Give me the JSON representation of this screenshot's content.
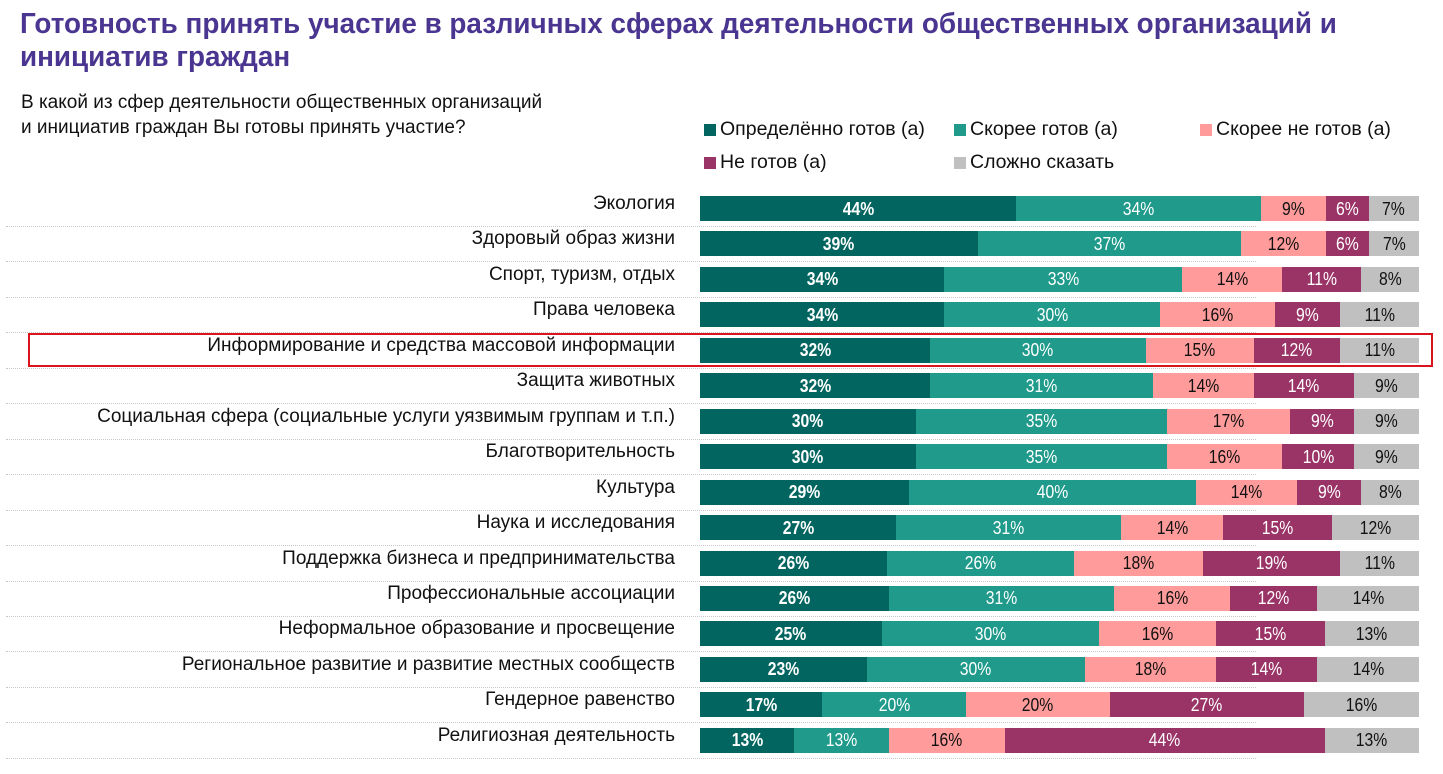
{
  "title": "Готовность принять участие в различных сферах деятельности общественных организаций и инициатив граждан",
  "subtitle_lines": [
    "В какой из сфер  деятельности общественных организаций",
    "и  инициатив граждан Вы готовы принять участие?"
  ],
  "highlighted_category": "Информирование и средства массовой информации",
  "chart_data": {
    "type": "bar",
    "orientation": "horizontal",
    "stacked": true,
    "normalized": "percent",
    "title": "Готовность принять участие в различных сферах деятельности общественных организаций и инициатив граждан",
    "subtitle": "В какой из сфер  деятельности общественных организаций и  инициатив граждан Вы готовы принять участие?",
    "xlabel": "",
    "ylabel": "",
    "xlim": [
      0,
      100
    ],
    "grid": false,
    "legend_position": "top-right",
    "value_format": "{v}%",
    "categories": [
      "Экология",
      "Здоровый образ жизни",
      "Спорт, туризм, отдых",
      "Права человека",
      "Информирование и средства массовой информации",
      "Защита животных",
      "Социальная сфера (социальные услуги уязвимым группам и т.п.)",
      "Благотворительность",
      "Культура",
      "Наука и  исследования",
      "Поддержка бизнеса и предпринимательства",
      "Профессиональные ассоциации",
      "Неформальное образование и просвещение",
      "Региональное развитие и развитие местных сообществ",
      "Гендерное равенство",
      "Религиозная деятельность"
    ],
    "series": [
      {
        "name": "Определённо готов (а)",
        "color": "#02655f",
        "label_color": "#ffffff",
        "bold": true,
        "values": [
          44,
          39,
          34,
          34,
          32,
          32,
          30,
          30,
          29,
          27,
          26,
          26,
          25,
          23,
          17,
          13
        ]
      },
      {
        "name": "Скорее готов (а)",
        "color": "#1f9a8b",
        "label_color": "#ffffff",
        "bold": false,
        "values": [
          34,
          37,
          33,
          30,
          30,
          31,
          35,
          35,
          40,
          31,
          26,
          31,
          30,
          30,
          20,
          13
        ]
      },
      {
        "name": "Скорее не готов (а)",
        "color": "#ff9b9b",
        "label_color": "#111111",
        "bold": false,
        "values": [
          9,
          12,
          14,
          16,
          15,
          14,
          17,
          16,
          14,
          14,
          18,
          16,
          16,
          18,
          20,
          16
        ]
      },
      {
        "name": "Не готов (а)",
        "color": "#9a3467",
        "label_color": "#ffffff",
        "bold": false,
        "values": [
          6,
          6,
          11,
          9,
          12,
          14,
          9,
          10,
          9,
          15,
          19,
          12,
          15,
          14,
          27,
          44
        ]
      },
      {
        "name": "Сложно сказать",
        "color": "#c0c0c0",
        "label_color": "#111111",
        "bold": false,
        "values": [
          7,
          7,
          8,
          11,
          11,
          9,
          9,
          9,
          8,
          12,
          11,
          14,
          13,
          14,
          16,
          13
        ]
      }
    ]
  }
}
